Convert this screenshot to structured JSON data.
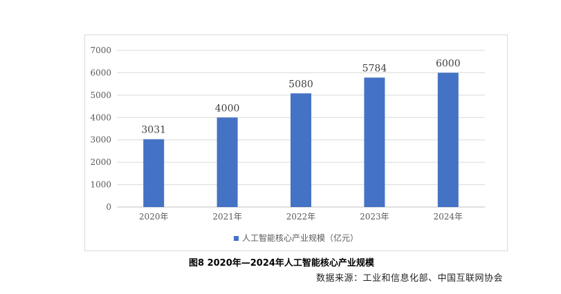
{
  "chart_data": {
    "type": "bar",
    "categories": [
      "2020年",
      "2021年",
      "2022年",
      "2023年",
      "2024年"
    ],
    "series": [
      {
        "name": "人工智能核心产业规模（亿元）",
        "values": [
          3031,
          4000,
          5080,
          5784,
          6000
        ]
      }
    ],
    "ylim": [
      0,
      7000
    ],
    "yticks": [
      0,
      1000,
      2000,
      3000,
      4000,
      5000,
      6000,
      7000
    ],
    "grid": true,
    "legend_position": "bottom",
    "bar_color": "#4472c4"
  },
  "figure": {
    "caption": "图8   2020年—2024年人工智能核心产业规模",
    "source": "数据来源：工业和信息化部、中国互联网协会"
  }
}
